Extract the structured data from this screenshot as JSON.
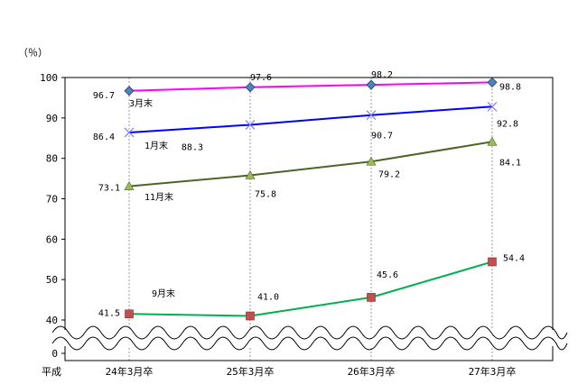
{
  "chart_data": {
    "type": "line",
    "unit_label": "（％）",
    "era_label": "平成",
    "categories": [
      "24年3月卒",
      "25年3月卒",
      "26年3月卒",
      "27年3月卒"
    ],
    "y_ticks": [
      0,
      40,
      50,
      60,
      70,
      80,
      90,
      100
    ],
    "ylim": [
      0,
      100
    ],
    "axis_break": true,
    "grid": "vertical dotted lines at categories",
    "series": [
      {
        "name": "3月末",
        "values": [
          96.7,
          97.6,
          98.2,
          98.8
        ],
        "color": "#ff00ff",
        "marker": "diamond",
        "marker_color": "#4f81bd"
      },
      {
        "name": "1月末",
        "values": [
          86.4,
          88.3,
          90.7,
          92.8
        ],
        "color": "#0000ff",
        "marker": "x",
        "marker_color": "#8080ff"
      },
      {
        "name": "11月末",
        "values": [
          73.1,
          75.8,
          79.2,
          84.1
        ],
        "color": "#4f6228",
        "marker": "triangle",
        "marker_color": "#9bbb59"
      },
      {
        "name": "9月末",
        "values": [
          41.5,
          41.0,
          45.6,
          54.4
        ],
        "color": "#00b050",
        "marker": "square",
        "marker_color": "#c0504d"
      }
    ]
  }
}
